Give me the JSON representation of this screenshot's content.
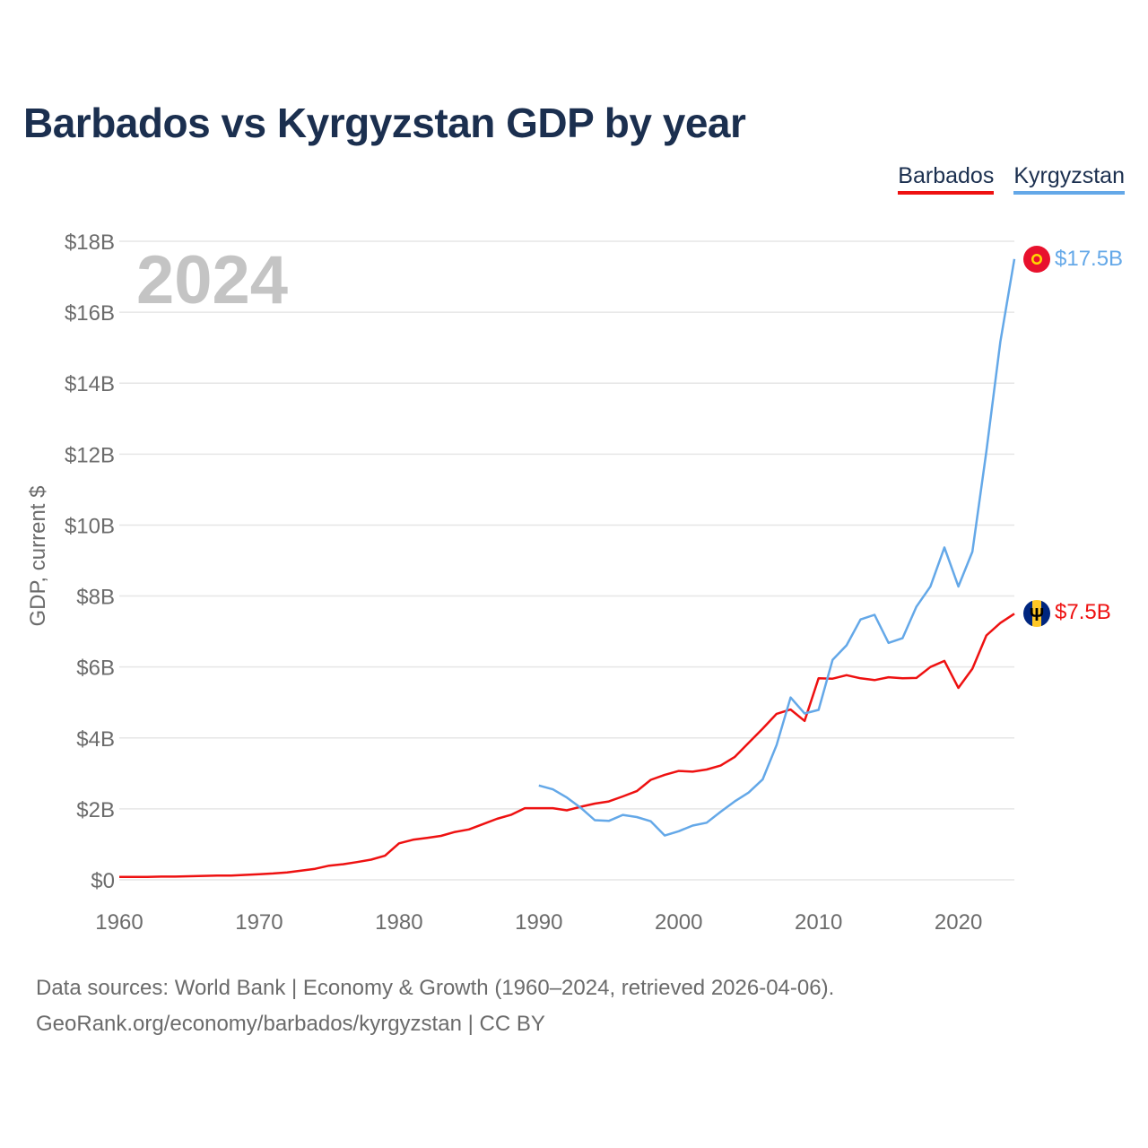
{
  "title": "Barbados vs Kyrgyzstan GDP by year",
  "legend": [
    {
      "name": "Barbados",
      "color": "#ee1111"
    },
    {
      "name": "Kyrgyzstan",
      "color": "#64a8e8"
    }
  ],
  "year_watermark": "2024",
  "end_labels": {
    "barbados": "$7.5B",
    "kyrgyzstan": "$17.5B"
  },
  "footer": {
    "line1": "Data sources: World Bank | Economy & Growth (1960–2024, retrieved 2026-04-06).",
    "line2": "GeoRank.org/economy/barbados/kyrgyzstan | CC BY"
  },
  "chart_data": {
    "type": "line",
    "title": "Barbados vs Kyrgyzstan GDP by year",
    "xlabel": "",
    "ylabel": "GDP, current $",
    "xlim": [
      1960,
      2024
    ],
    "ylim": [
      0,
      18
    ],
    "y_unit": "billion USD",
    "x_ticks": [
      1960,
      1970,
      1980,
      1990,
      2000,
      2010,
      2020
    ],
    "y_ticks": [
      0,
      2,
      4,
      6,
      8,
      10,
      12,
      14,
      16,
      18
    ],
    "y_tick_labels": [
      "$0",
      "$2B",
      "$4B",
      "$6B",
      "$8B",
      "$10B",
      "$12B",
      "$14B",
      "$16B",
      "$18B"
    ],
    "grid": true,
    "legend_position": "top-right",
    "series": [
      {
        "name": "Barbados",
        "color": "#ee1111",
        "x": [
          1960,
          1961,
          1962,
          1963,
          1964,
          1965,
          1966,
          1967,
          1968,
          1969,
          1970,
          1971,
          1972,
          1973,
          1974,
          1975,
          1976,
          1977,
          1978,
          1979,
          1980,
          1981,
          1982,
          1983,
          1984,
          1985,
          1986,
          1987,
          1988,
          1989,
          1990,
          1991,
          1992,
          1993,
          1994,
          1995,
          1996,
          1997,
          1998,
          1999,
          2000,
          2001,
          2002,
          2003,
          2004,
          2005,
          2006,
          2007,
          2008,
          2009,
          2010,
          2011,
          2012,
          2013,
          2014,
          2015,
          2016,
          2017,
          2018,
          2019,
          2020,
          2021,
          2022,
          2023,
          2024
        ],
        "values": [
          0.08,
          0.08,
          0.08,
          0.09,
          0.09,
          0.1,
          0.11,
          0.12,
          0.12,
          0.14,
          0.16,
          0.18,
          0.21,
          0.26,
          0.31,
          0.4,
          0.44,
          0.5,
          0.57,
          0.68,
          1.03,
          1.13,
          1.18,
          1.24,
          1.35,
          1.42,
          1.57,
          1.72,
          1.83,
          2.02,
          2.02,
          2.02,
          1.96,
          2.06,
          2.15,
          2.21,
          2.35,
          2.5,
          2.82,
          2.96,
          3.07,
          3.05,
          3.11,
          3.22,
          3.46,
          3.86,
          4.26,
          4.68,
          4.8,
          4.48,
          5.68,
          5.67,
          5.77,
          5.68,
          5.63,
          5.71,
          5.68,
          5.69,
          6.0,
          6.17,
          5.41,
          5.95,
          6.89,
          7.24,
          7.5
        ]
      },
      {
        "name": "Kyrgyzstan",
        "color": "#64a8e8",
        "x": [
          1990,
          1991,
          1992,
          1993,
          1994,
          1995,
          1996,
          1997,
          1998,
          1999,
          2000,
          2001,
          2002,
          2003,
          2004,
          2005,
          2006,
          2007,
          2008,
          2009,
          2010,
          2011,
          2012,
          2013,
          2014,
          2015,
          2016,
          2017,
          2018,
          2019,
          2020,
          2021,
          2022,
          2023,
          2024
        ],
        "values": [
          2.66,
          2.55,
          2.32,
          2.03,
          1.68,
          1.66,
          1.83,
          1.77,
          1.65,
          1.25,
          1.37,
          1.53,
          1.61,
          1.92,
          2.21,
          2.46,
          2.83,
          3.8,
          5.14,
          4.69,
          4.79,
          6.2,
          6.61,
          7.34,
          7.47,
          6.68,
          6.81,
          7.7,
          8.27,
          9.37,
          8.27,
          9.25,
          12.08,
          15.17,
          17.5
        ]
      }
    ]
  }
}
